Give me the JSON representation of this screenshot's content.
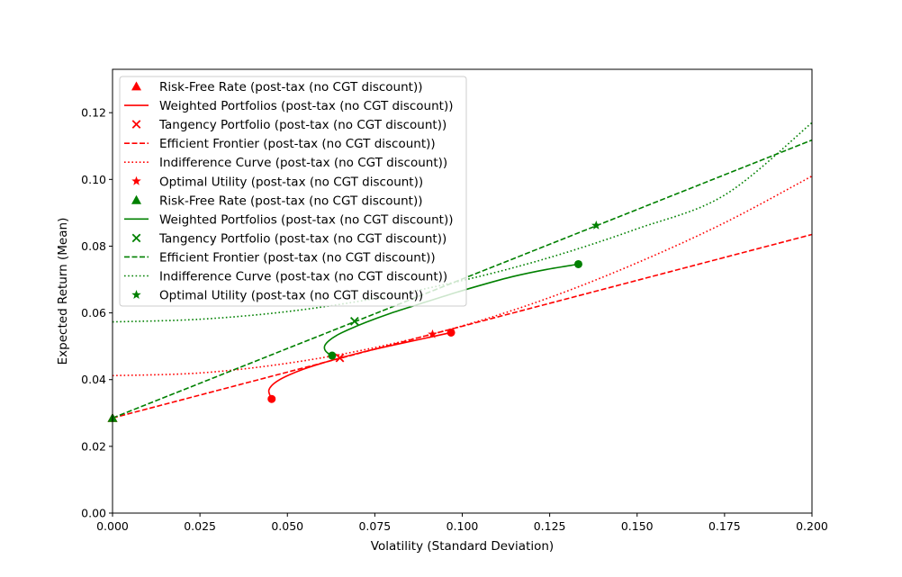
{
  "chart_data": {
    "type": "line",
    "title": "",
    "xlabel": "Volatility (Standard Deviation)",
    "ylabel": "Expected Return (Mean)",
    "xlim": [
      0,
      0.2
    ],
    "ylim": [
      0,
      0.133
    ],
    "xticks": [
      0,
      0.025,
      0.05,
      0.075,
      0.1,
      0.125,
      0.15,
      0.175,
      0.2
    ],
    "xtick_labels": [
      "0.000",
      "0.025",
      "0.050",
      "0.075",
      "0.100",
      "0.125",
      "0.150",
      "0.175",
      "0.200"
    ],
    "yticks": [
      0,
      0.02,
      0.04,
      0.06,
      0.08,
      0.1,
      0.12
    ],
    "ytick_labels": [
      "0.00",
      "0.02",
      "0.04",
      "0.06",
      "0.08",
      "0.10",
      "0.12"
    ],
    "grid": false,
    "legend_position": "top-left",
    "legend": [
      {
        "label": "Risk-Free Rate (post-tax (no CGT discount))",
        "color": "#ff0000",
        "marker": "triangle"
      },
      {
        "label": "Weighted Portfolios (post-tax (no CGT discount))",
        "color": "#ff0000",
        "line": "solid"
      },
      {
        "label": "Tangency Portfolio (post-tax (no CGT discount))",
        "color": "#ff0000",
        "marker": "x"
      },
      {
        "label": "Efficient Frontier (post-tax (no CGT discount))",
        "color": "#ff0000",
        "line": "dashed"
      },
      {
        "label": "Indifference Curve (post-tax (no CGT discount))",
        "color": "#ff0000",
        "line": "dotted"
      },
      {
        "label": "Optimal Utility (post-tax (no CGT discount))",
        "color": "#ff0000",
        "marker": "star"
      },
      {
        "label": "Risk-Free Rate (post-tax (no CGT discount))",
        "color": "#008000",
        "marker": "triangle"
      },
      {
        "label": "Weighted Portfolios (post-tax (no CGT discount))",
        "color": "#008000",
        "line": "solid"
      },
      {
        "label": "Tangency Portfolio (post-tax (no CGT discount))",
        "color": "#008000",
        "marker": "x"
      },
      {
        "label": "Efficient Frontier (post-tax (no CGT discount))",
        "color": "#008000",
        "line": "dashed"
      },
      {
        "label": "Indifference Curve (post-tax (no CGT discount))",
        "color": "#008000",
        "line": "dotted"
      },
      {
        "label": "Optimal Utility (post-tax (no CGT discount))",
        "color": "#008000",
        "marker": "star"
      }
    ],
    "series": [
      {
        "name": "Risk-Free Rate (post-tax (no CGT discount))",
        "color": "#ff0000",
        "kind": "point",
        "marker": "triangle",
        "points": [
          [
            0.0,
            0.0285
          ]
        ]
      },
      {
        "name": "Weighted Portfolios (post-tax (no CGT discount))",
        "color": "#ff0000",
        "kind": "line",
        "style": "solid",
        "points": [
          [
            0.0455,
            0.0342
          ],
          [
            0.0449,
            0.0356
          ],
          [
            0.0447,
            0.0368
          ],
          [
            0.0455,
            0.0382
          ],
          [
            0.0475,
            0.0398
          ],
          [
            0.0505,
            0.0414
          ],
          [
            0.0545,
            0.0431
          ],
          [
            0.0595,
            0.0448
          ],
          [
            0.0655,
            0.0466
          ],
          [
            0.0725,
            0.0485
          ],
          [
            0.0805,
            0.0504
          ],
          [
            0.0885,
            0.0522
          ],
          [
            0.0968,
            0.0541
          ]
        ],
        "endpoints": [
          [
            0.0455,
            0.0342
          ],
          [
            0.0968,
            0.0541
          ]
        ]
      },
      {
        "name": "Tangency Portfolio (post-tax (no CGT discount))",
        "color": "#ff0000",
        "kind": "point",
        "marker": "x",
        "points": [
          [
            0.065,
            0.0465
          ]
        ]
      },
      {
        "name": "Efficient Frontier (post-tax (no CGT discount))",
        "color": "#ff0000",
        "kind": "line",
        "style": "dashed",
        "points": [
          [
            0.0,
            0.0285
          ],
          [
            0.2,
            0.0835
          ]
        ]
      },
      {
        "name": "Indifference Curve (post-tax (no CGT discount))",
        "color": "#ff0000",
        "kind": "line",
        "style": "dotted",
        "points": [
          [
            0.0,
            0.0412
          ],
          [
            0.025,
            0.042
          ],
          [
            0.05,
            0.0449
          ],
          [
            0.075,
            0.0496
          ],
          [
            0.1,
            0.0561
          ],
          [
            0.125,
            0.0646
          ],
          [
            0.15,
            0.075
          ],
          [
            0.175,
            0.087
          ],
          [
            0.2,
            0.101
          ]
        ]
      },
      {
        "name": "Optimal Utility (post-tax (no CGT discount))",
        "color": "#ff0000",
        "kind": "point",
        "marker": "star",
        "points": [
          [
            0.0915,
            0.0536
          ]
        ]
      },
      {
        "name": "Risk-Free Rate (post-tax (no CGT discount))",
        "color": "#008000",
        "kind": "point",
        "marker": "triangle",
        "points": [
          [
            0.0,
            0.0285
          ]
        ]
      },
      {
        "name": "Weighted Portfolios (post-tax (no CGT discount))",
        "color": "#008000",
        "kind": "line",
        "style": "solid",
        "points": [
          [
            0.0628,
            0.0472
          ],
          [
            0.0615,
            0.048
          ],
          [
            0.0607,
            0.049
          ],
          [
            0.0607,
            0.0502
          ],
          [
            0.0618,
            0.0516
          ],
          [
            0.064,
            0.0532
          ],
          [
            0.0675,
            0.055
          ],
          [
            0.0725,
            0.0572
          ],
          [
            0.079,
            0.0597
          ],
          [
            0.087,
            0.0624
          ],
          [
            0.096,
            0.0654
          ],
          [
            0.105,
            0.0682
          ],
          [
            0.1145,
            0.0709
          ],
          [
            0.124,
            0.073
          ],
          [
            0.1332,
            0.0746
          ]
        ],
        "endpoints": [
          [
            0.0628,
            0.0472
          ],
          [
            0.1332,
            0.0746
          ]
        ]
      },
      {
        "name": "Tangency Portfolio (post-tax (no CGT discount))",
        "color": "#008000",
        "kind": "point",
        "marker": "x",
        "points": [
          [
            0.0692,
            0.0575
          ]
        ]
      },
      {
        "name": "Efficient Frontier (post-tax (no CGT discount))",
        "color": "#008000",
        "kind": "line",
        "style": "dashed",
        "points": [
          [
            0.0,
            0.0285
          ],
          [
            0.2,
            0.1118
          ]
        ]
      },
      {
        "name": "Indifference Curve (post-tax (no CGT discount))",
        "color": "#008000",
        "kind": "line",
        "style": "dotted",
        "points": [
          [
            0.0,
            0.0573
          ],
          [
            0.025,
            0.0581
          ],
          [
            0.05,
            0.0604
          ],
          [
            0.075,
            0.0643
          ],
          [
            0.1,
            0.0697
          ],
          [
            0.125,
            0.0766
          ],
          [
            0.15,
            0.0852
          ],
          [
            0.175,
            0.0953
          ],
          [
            0.2,
            0.117
          ]
        ]
      },
      {
        "name": "Optimal Utility (post-tax (no CGT discount))",
        "color": "#008000",
        "kind": "point",
        "marker": "star",
        "points": [
          [
            0.1383,
            0.0862
          ]
        ]
      }
    ]
  }
}
